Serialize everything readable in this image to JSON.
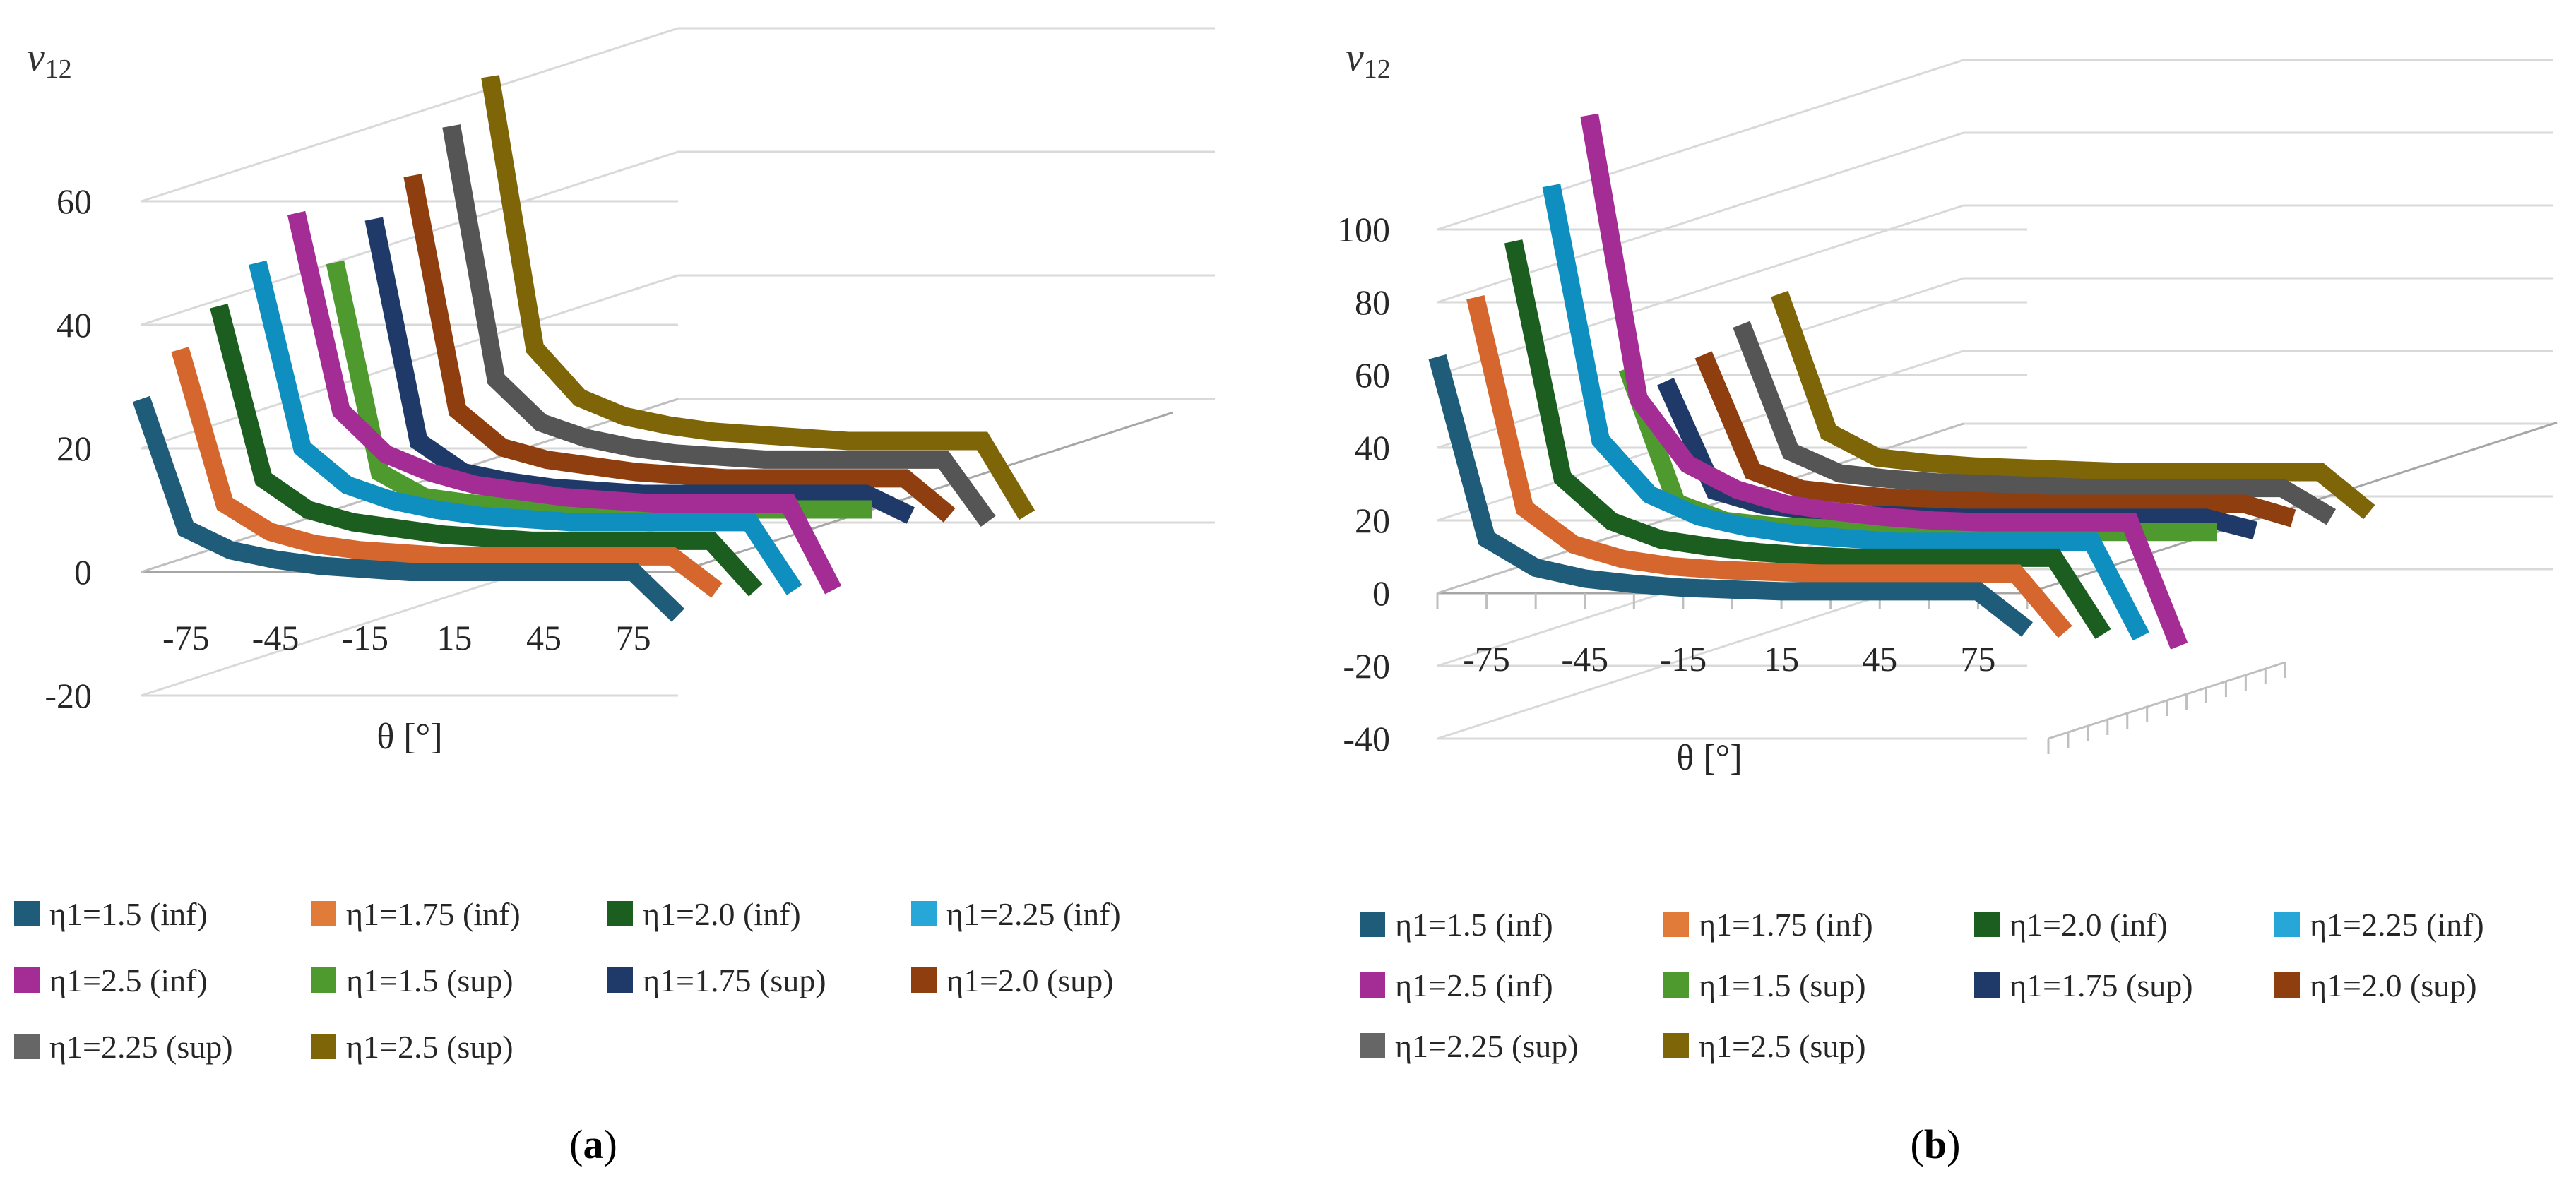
{
  "chart_data": [
    {
      "panel": "a",
      "type": "line",
      "title": "",
      "ylabel": "ν12",
      "ylabel_main": "ν",
      "ylabel_sub": "12",
      "xlabel": "θ [°]",
      "ylim": [
        -20,
        60
      ],
      "y_ticks": [
        "-20",
        "0",
        "20",
        "40",
        "60"
      ],
      "x_ticks": [
        "-75",
        "-45",
        "-15",
        "15",
        "45",
        "75"
      ],
      "x": [
        -90,
        -75,
        -60,
        -45,
        -30,
        -15,
        0,
        15,
        30,
        45,
        60,
        75,
        90
      ],
      "series": [
        {
          "name": "η1=1.5 (inf)",
          "color": "#1f5c7a",
          "values": [
            28,
            7,
            3.5,
            2,
            1,
            0.5,
            0,
            0,
            0,
            0,
            0,
            0,
            -7
          ]
        },
        {
          "name": "η1=1.75 (inf)",
          "color": "#d5662d",
          "values": [
            34,
            9,
            4.5,
            2.5,
            1.5,
            1,
            0.5,
            0.5,
            0.5,
            0.5,
            0.5,
            0.5,
            -5
          ]
        },
        {
          "name": "η1=2.0 (inf)",
          "color": "#1b5e20",
          "values": [
            39,
            11,
            6,
            4,
            3,
            2,
            1.5,
            1,
            1,
            1,
            1,
            1,
            -7
          ]
        },
        {
          "name": "η1=2.25 (inf)",
          "color": "#0e8fbf",
          "values": [
            44,
            14,
            8,
            5.5,
            4,
            3,
            2.5,
            2,
            2,
            2,
            2,
            2,
            -9
          ]
        },
        {
          "name": "η1=2.5 (inf)",
          "color": "#a42c95",
          "values": [
            50,
            18,
            11,
            8,
            6,
            5,
            4,
            3.5,
            3,
            3,
            3,
            3,
            -11
          ]
        },
        {
          "name": "η1=1.5 (sup)",
          "color": "#4f9a2f",
          "values": [
            40,
            6,
            2,
            1,
            0.5,
            0,
            0,
            0,
            0,
            0,
            0,
            0,
            0
          ]
        },
        {
          "name": "η1=1.75 (sup)",
          "color": "#1f3a68",
          "values": [
            45,
            9,
            4,
            2.5,
            1.5,
            1,
            0.5,
            0.5,
            0.5,
            0.5,
            0.5,
            0.5,
            -3
          ]
        },
        {
          "name": "η1=2.0 (sup)",
          "color": "#8f3f0f",
          "values": [
            50,
            12,
            6,
            4,
            3,
            2,
            1.5,
            1,
            1,
            1,
            1,
            1,
            -5
          ]
        },
        {
          "name": "η1=2.25 (sup)",
          "color": "#555555",
          "values": [
            56,
            15,
            8,
            5.5,
            4,
            3,
            2.5,
            2,
            2,
            2,
            2,
            2,
            -8
          ]
        },
        {
          "name": "η1=2.5 (sup)",
          "color": "#7d6508",
          "values": [
            62,
            18,
            10,
            7,
            5.5,
            4.5,
            4,
            3.5,
            3,
            3,
            3,
            3,
            -9
          ]
        }
      ],
      "legend": [
        {
          "label": "η1=1.5 (inf)",
          "color": "#1f5c7a"
        },
        {
          "label": "η1=1.75 (inf)",
          "color": "#e07b39"
        },
        {
          "label": "η1=2.0 (inf)",
          "color": "#1b5e20"
        },
        {
          "label": "η1=2.25 (inf)",
          "color": "#27a7d8"
        },
        {
          "label": "η1=2.5 (inf)",
          "color": "#a42c95"
        },
        {
          "label": "η1=1.5 (sup)",
          "color": "#4f9a2f"
        },
        {
          "label": "η1=1.75 (sup)",
          "color": "#1f3a68"
        },
        {
          "label": "η1=2.0 (sup)",
          "color": "#8f3f0f"
        },
        {
          "label": "η1=2.25 (sup)",
          "color": "#666666"
        },
        {
          "label": "η1=2.5 (sup)",
          "color": "#7d6508"
        }
      ],
      "caption": {
        "open": "(",
        "letter": "a",
        "close": ")"
      }
    },
    {
      "panel": "b",
      "type": "line",
      "title": "",
      "ylabel": "ν12",
      "ylabel_main": "ν",
      "ylabel_sub": "12",
      "xlabel": "θ [°]",
      "ylim": [
        -40,
        100
      ],
      "y_ticks": [
        "-40",
        "-20",
        "0",
        "20",
        "40",
        "60",
        "80",
        "100"
      ],
      "x_ticks": [
        "-75",
        "-45",
        "-15",
        "15",
        "45",
        "75"
      ],
      "x": [
        -90,
        -75,
        -60,
        -45,
        -30,
        -15,
        0,
        15,
        30,
        45,
        60,
        75,
        90
      ],
      "series": [
        {
          "name": "η1=1.5 (inf)",
          "color": "#1f5c7a",
          "values": [
            65,
            15,
            7,
            4,
            2.5,
            1.5,
            1,
            0.5,
            0.5,
            0.5,
            0.5,
            0.5,
            -10
          ]
        },
        {
          "name": "η1=1.75 (inf)",
          "color": "#d5662d",
          "values": [
            78,
            20,
            10,
            6,
            4,
            3,
            2.5,
            2,
            2,
            2,
            2,
            2,
            -14
          ]
        },
        {
          "name": "η1=2.0 (inf)",
          "color": "#1b5e20",
          "values": [
            90,
            25,
            13,
            8,
            6,
            4.5,
            3.5,
            3,
            3,
            3,
            3,
            3,
            -18
          ]
        },
        {
          "name": "η1=2.25 (inf)",
          "color": "#0e8fbf",
          "values": [
            102,
            32,
            17,
            11,
            8,
            6,
            5,
            4,
            4,
            4,
            4,
            4,
            -22
          ]
        },
        {
          "name": "η1=2.5 (inf)",
          "color": "#a42c95",
          "values": [
            118,
            40,
            22,
            15,
            11,
            9,
            7.5,
            6.5,
            6,
            6,
            6,
            6,
            -28
          ]
        },
        {
          "name": "η1=1.5 (sup)",
          "color": "#4f9a2f",
          "values": [
            45,
            8,
            3,
            1.5,
            1,
            0.5,
            0,
            0,
            0,
            0,
            0,
            0,
            0
          ]
        },
        {
          "name": "η1=1.75 (sup)",
          "color": "#1f3a68",
          "values": [
            38,
            8,
            4,
            2.5,
            1.5,
            1,
            0.5,
            0.5,
            0.5,
            0.5,
            0.5,
            0.5,
            -3
          ]
        },
        {
          "name": "η1=2.0 (sup)",
          "color": "#8f3f0f",
          "values": [
            42,
            10,
            5,
            3.5,
            2.5,
            2,
            1.5,
            1,
            1,
            1,
            1,
            1,
            -3
          ]
        },
        {
          "name": "η1=2.25 (sup)",
          "color": "#555555",
          "values": [
            47,
            12,
            6,
            4.5,
            3.5,
            3,
            2.5,
            2,
            2,
            2,
            2,
            2,
            -6
          ]
        },
        {
          "name": "η1=2.5 (sup)",
          "color": "#7d6508",
          "values": [
            52,
            14,
            7,
            5.5,
            4.5,
            4,
            3.5,
            3,
            3,
            3,
            3,
            3,
            -8
          ]
        }
      ],
      "legend": [
        {
          "label": "η1=1.5 (inf)",
          "color": "#1f5c7a"
        },
        {
          "label": "η1=1.75 (inf)",
          "color": "#e07b39"
        },
        {
          "label": "η1=2.0 (inf)",
          "color": "#1b5e20"
        },
        {
          "label": "η1=2.25 (inf)",
          "color": "#27a7d8"
        },
        {
          "label": "η1=2.5 (inf)",
          "color": "#a42c95"
        },
        {
          "label": "η1=1.5 (sup)",
          "color": "#4f9a2f"
        },
        {
          "label": "η1=1.75 (sup)",
          "color": "#1f3a68"
        },
        {
          "label": "η1=2.0 (sup)",
          "color": "#8f3f0f"
        },
        {
          "label": "η1=2.25 (sup)",
          "color": "#666666"
        },
        {
          "label": "η1=2.5 (sup)",
          "color": "#7d6508"
        }
      ],
      "caption": {
        "open": "(",
        "letter": "b",
        "close": ")"
      }
    }
  ]
}
